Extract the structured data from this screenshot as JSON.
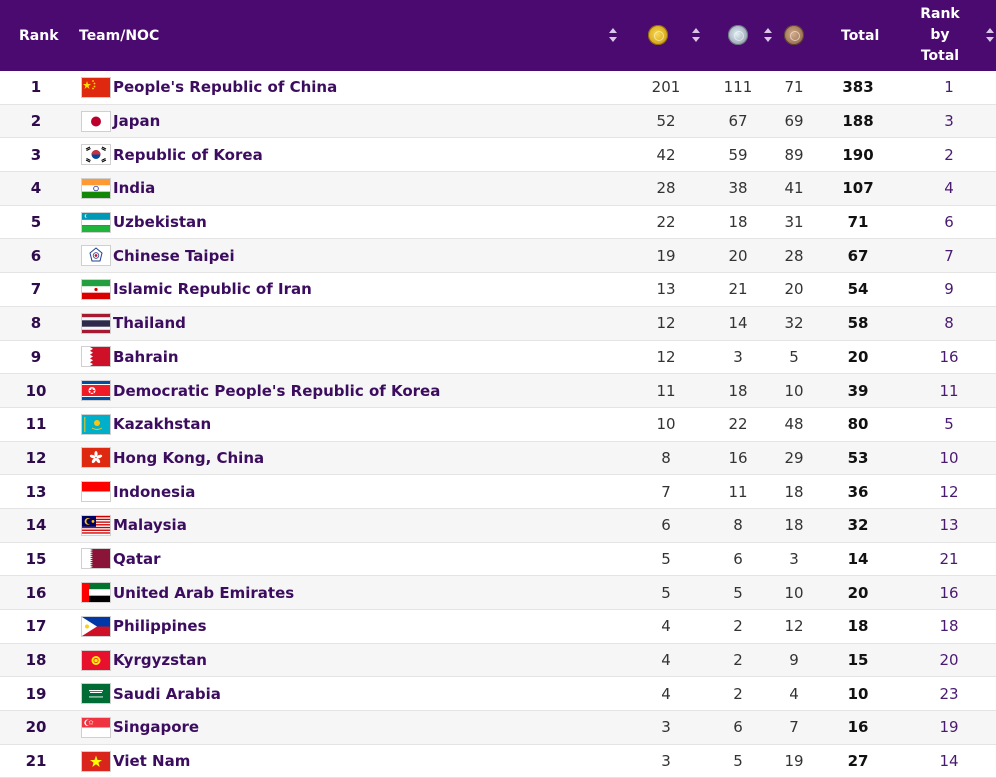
{
  "header": {
    "rank": "Rank",
    "team": "Team/NOC",
    "gold_icon": "gold-medal-icon",
    "silver_icon": "silver-medal-icon",
    "bronze_icon": "bronze-medal-icon",
    "total": "Total",
    "rank_by_total": [
      "Rank",
      "by",
      "Total"
    ]
  },
  "colors": {
    "header_bg": "#4a0a70",
    "team_text": "#3c0d5e",
    "row_alt": "#f6f6f6"
  },
  "rows": [
    {
      "rank": "1",
      "team": "People's Republic of China",
      "flag": "flag-china-icon",
      "gold": "201",
      "silver": "111",
      "bronze": "71",
      "total": "383",
      "rank_by_total": "1"
    },
    {
      "rank": "2",
      "team": "Japan",
      "flag": "flag-japan-icon",
      "gold": "52",
      "silver": "67",
      "bronze": "69",
      "total": "188",
      "rank_by_total": "3"
    },
    {
      "rank": "3",
      "team": "Republic of Korea",
      "flag": "flag-korea-icon",
      "gold": "42",
      "silver": "59",
      "bronze": "89",
      "total": "190",
      "rank_by_total": "2"
    },
    {
      "rank": "4",
      "team": "India",
      "flag": "flag-india-icon",
      "gold": "28",
      "silver": "38",
      "bronze": "41",
      "total": "107",
      "rank_by_total": "4"
    },
    {
      "rank": "5",
      "team": "Uzbekistan",
      "flag": "flag-uzbekistan-icon",
      "gold": "22",
      "silver": "18",
      "bronze": "31",
      "total": "71",
      "rank_by_total": "6"
    },
    {
      "rank": "6",
      "team": "Chinese Taipei",
      "flag": "flag-chinese-taipei-icon",
      "gold": "19",
      "silver": "20",
      "bronze": "28",
      "total": "67",
      "rank_by_total": "7"
    },
    {
      "rank": "7",
      "team": "Islamic Republic of Iran",
      "flag": "flag-iran-icon",
      "gold": "13",
      "silver": "21",
      "bronze": "20",
      "total": "54",
      "rank_by_total": "9"
    },
    {
      "rank": "8",
      "team": "Thailand",
      "flag": "flag-thailand-icon",
      "gold": "12",
      "silver": "14",
      "bronze": "32",
      "total": "58",
      "rank_by_total": "8"
    },
    {
      "rank": "9",
      "team": "Bahrain",
      "flag": "flag-bahrain-icon",
      "gold": "12",
      "silver": "3",
      "bronze": "5",
      "total": "20",
      "rank_by_total": "16"
    },
    {
      "rank": "10",
      "team": "Democratic People's Republic of Korea",
      "flag": "flag-dprk-icon",
      "gold": "11",
      "silver": "18",
      "bronze": "10",
      "total": "39",
      "rank_by_total": "11"
    },
    {
      "rank": "11",
      "team": "Kazakhstan",
      "flag": "flag-kazakhstan-icon",
      "gold": "10",
      "silver": "22",
      "bronze": "48",
      "total": "80",
      "rank_by_total": "5"
    },
    {
      "rank": "12",
      "team": "Hong Kong, China",
      "flag": "flag-hong-kong-icon",
      "gold": "8",
      "silver": "16",
      "bronze": "29",
      "total": "53",
      "rank_by_total": "10"
    },
    {
      "rank": "13",
      "team": "Indonesia",
      "flag": "flag-indonesia-icon",
      "gold": "7",
      "silver": "11",
      "bronze": "18",
      "total": "36",
      "rank_by_total": "12"
    },
    {
      "rank": "14",
      "team": "Malaysia",
      "flag": "flag-malaysia-icon",
      "gold": "6",
      "silver": "8",
      "bronze": "18",
      "total": "32",
      "rank_by_total": "13"
    },
    {
      "rank": "15",
      "team": "Qatar",
      "flag": "flag-qatar-icon",
      "gold": "5",
      "silver": "6",
      "bronze": "3",
      "total": "14",
      "rank_by_total": "21"
    },
    {
      "rank": "16",
      "team": "United Arab Emirates",
      "flag": "flag-uae-icon",
      "gold": "5",
      "silver": "5",
      "bronze": "10",
      "total": "20",
      "rank_by_total": "16"
    },
    {
      "rank": "17",
      "team": "Philippines",
      "flag": "flag-philippines-icon",
      "gold": "4",
      "silver": "2",
      "bronze": "12",
      "total": "18",
      "rank_by_total": "18"
    },
    {
      "rank": "18",
      "team": "Kyrgyzstan",
      "flag": "flag-kyrgyzstan-icon",
      "gold": "4",
      "silver": "2",
      "bronze": "9",
      "total": "15",
      "rank_by_total": "20"
    },
    {
      "rank": "19",
      "team": "Saudi Arabia",
      "flag": "flag-saudi-arabia-icon",
      "gold": "4",
      "silver": "2",
      "bronze": "4",
      "total": "10",
      "rank_by_total": "23"
    },
    {
      "rank": "20",
      "team": "Singapore",
      "flag": "flag-singapore-icon",
      "gold": "3",
      "silver": "6",
      "bronze": "7",
      "total": "16",
      "rank_by_total": "19"
    },
    {
      "rank": "21",
      "team": "Viet Nam",
      "flag": "flag-viet-nam-icon",
      "gold": "3",
      "silver": "5",
      "bronze": "19",
      "total": "27",
      "rank_by_total": "14"
    }
  ]
}
